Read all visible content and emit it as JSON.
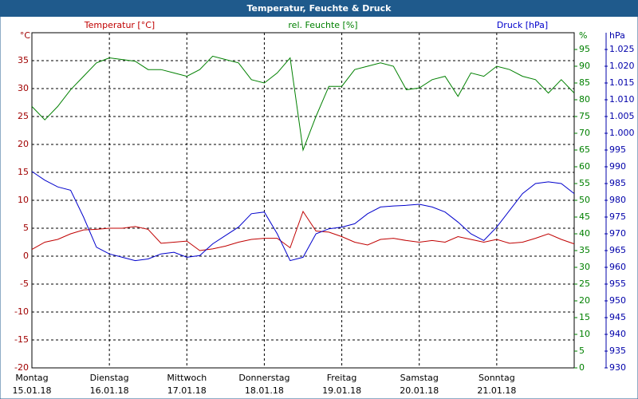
{
  "chart_data": {
    "type": "line",
    "title": "Temperatur, Feuchte & Druck",
    "y_unit": "°C",
    "y2_unit": "%",
    "y3_unit": "hPa",
    "x": [
      0,
      4,
      8,
      12,
      16,
      20,
      24,
      28,
      32,
      36,
      40,
      44,
      48,
      52,
      56,
      60,
      64,
      68,
      72,
      76,
      80,
      84,
      88,
      92,
      96,
      100,
      104,
      108,
      112,
      116,
      120,
      124,
      128,
      132,
      136,
      140,
      144,
      148,
      152,
      156,
      160,
      164,
      168
    ],
    "xlim": [
      0,
      168
    ],
    "xticks": [
      {
        "value": 0,
        "label": [
          "Montag",
          "15.01.18"
        ]
      },
      {
        "value": 24,
        "label": [
          "Dienstag",
          "16.01.18"
        ]
      },
      {
        "value": 48,
        "label": [
          "Mittwoch",
          "17.01.18"
        ]
      },
      {
        "value": 72,
        "label": [
          "Donnerstag",
          "18.01.18"
        ]
      },
      {
        "value": 96,
        "label": [
          "Freitag",
          "19.01.18"
        ]
      },
      {
        "value": 120,
        "label": [
          "Samstag",
          "20.01.18"
        ]
      },
      {
        "value": 144,
        "label": [
          "Sonntag",
          "21.01.18"
        ]
      }
    ],
    "ylim": [
      -20,
      40
    ],
    "yticks": [
      -20,
      -15,
      -10,
      -5,
      0,
      5,
      10,
      15,
      20,
      25,
      30,
      35
    ],
    "y2lim": [
      0,
      100
    ],
    "y2ticks": [
      0,
      5,
      10,
      15,
      20,
      25,
      30,
      35,
      40,
      45,
      50,
      55,
      60,
      65,
      70,
      75,
      80,
      85,
      90,
      95
    ],
    "y3lim": [
      930,
      1030
    ],
    "y3ticks": [
      930,
      935,
      940,
      945,
      950,
      955,
      960,
      965,
      970,
      975,
      980,
      985,
      990,
      995,
      {
        "value": 1000,
        "label": "1.000"
      },
      {
        "value": 1005,
        "label": "1.005"
      },
      {
        "value": 1010,
        "label": "1.010"
      },
      {
        "value": 1015,
        "label": "1.015"
      },
      {
        "value": 1020,
        "label": "1.020"
      },
      {
        "value": 1025,
        "label": "1.025"
      }
    ],
    "grid": true,
    "series": [
      {
        "name": "Temperatur [°C]",
        "color": "#c00000",
        "axis": "y",
        "values": [
          1.2,
          2.5,
          3,
          4,
          4.7,
          4.8,
          5,
          5,
          5.3,
          4.8,
          2.3,
          2.5,
          2.7,
          1.0,
          1.3,
          1.8,
          2.5,
          3.0,
          3.2,
          3.2,
          1.5,
          8.0,
          4.5,
          4.3,
          3.5,
          2.5,
          2.0,
          3.0,
          3.2,
          2.8,
          2.5,
          2.8,
          2.5,
          3.5,
          3.0,
          2.5,
          3.0,
          2.3,
          2.5,
          3.2,
          4.0,
          3.0,
          2.2
        ]
      },
      {
        "name": "rel. Feuchte [%]",
        "color": "#008000",
        "axis": "y2",
        "values": [
          78,
          74,
          78,
          83,
          87,
          91,
          92.5,
          92,
          91.5,
          89,
          89,
          88,
          87,
          89,
          93,
          92,
          91,
          86,
          85,
          88,
          92.5,
          65,
          75,
          84,
          84,
          89,
          90,
          91,
          90,
          83,
          83.5,
          86,
          87,
          81,
          88,
          87,
          90,
          89,
          87,
          86,
          82,
          86,
          82
        ]
      },
      {
        "name": "Druck [hPa]",
        "color": "#0000cc",
        "axis": "y3",
        "values": [
          988.6,
          986,
          984,
          983,
          975,
          966,
          964,
          963,
          962,
          962.5,
          964,
          964.5,
          963,
          963.5,
          967,
          969.5,
          972,
          976,
          976.5,
          970,
          962,
          963,
          970,
          971.5,
          972,
          973,
          976,
          978,
          978.3,
          978.5,
          978.8,
          978,
          976.5,
          973.5,
          970,
          968,
          972,
          977,
          982,
          985,
          985.5,
          985,
          982
        ]
      }
    ]
  }
}
